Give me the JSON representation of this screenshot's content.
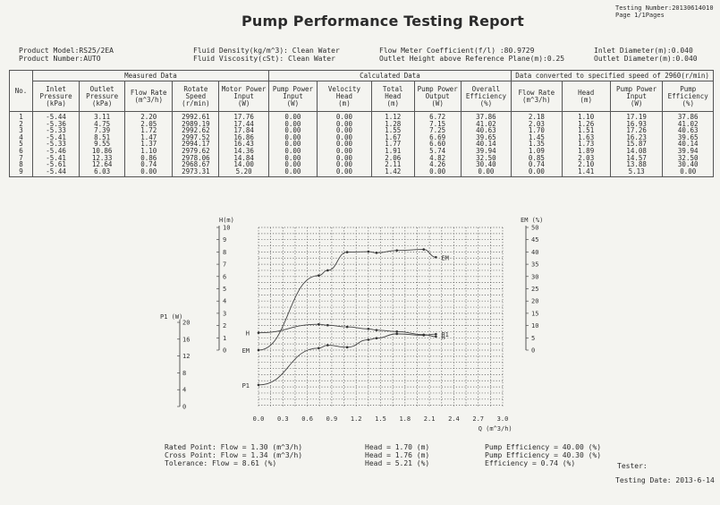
{
  "header": {
    "title": "Pump Performance Testing Report",
    "testing_number": "Testing Number:20130614010",
    "page": "Page 1/1Pages"
  },
  "meta": {
    "product_model": "Product Model:RS25/2EA",
    "product_number": "Product Number:AUTO",
    "fluid_density": "Fluid Density(kg/m^3): Clean Water",
    "fluid_viscosity": "Fluid Viscosity(cSt): Clean Water",
    "flow_meter": "Flow Meter Coefficient(f/l) :80.9729",
    "outlet_height": "Outlet Height above Reference Plane(m):0.25",
    "inlet_diameter": "Inlet Diameter(m):0.040",
    "outlet_diameter": "Outlet Diameter(m):0.040"
  },
  "table": {
    "group_measured": "Measured Data",
    "group_calculated": "Calculated Data",
    "group_converted": "Data converted to specified speed of 2960(r/min)",
    "no_label": "No.",
    "columns": [
      [
        "Inlet",
        "Pressure",
        "(kPa)"
      ],
      [
        "Outlet",
        "Pressure",
        "(kPa)"
      ],
      [
        "Flow Rate",
        "",
        "(m^3/h)"
      ],
      [
        "Rotate",
        "Speed",
        "(r/min)"
      ],
      [
        "Motor Power",
        "Input",
        "(W)"
      ],
      [
        "Pump Power",
        "Input",
        "(W)"
      ],
      [
        "Velocity",
        "Head",
        "(m)"
      ],
      [
        "Total",
        "Head",
        "(m)"
      ],
      [
        "Pump Power",
        "Output",
        "(W)"
      ],
      [
        "Overall",
        "Efficiency",
        "(%)"
      ],
      [
        "Flow Rate",
        "",
        "(m^3/h)"
      ],
      [
        "Head",
        "",
        "(m)"
      ],
      [
        "Pump Power",
        "Input",
        "(W)"
      ],
      [
        "Pump",
        "Efficiency",
        "(%)"
      ]
    ],
    "rows": [
      [
        "1",
        "-5.44",
        "3.11",
        "2.20",
        "2992.61",
        "17.76",
        "0.00",
        "0.00",
        "1.12",
        "6.72",
        "37.86",
        "2.18",
        "1.10",
        "17.19",
        "37.86"
      ],
      [
        "2",
        "-5.36",
        "4.75",
        "2.05",
        "2989.19",
        "17.44",
        "0.00",
        "0.00",
        "1.28",
        "7.15",
        "41.02",
        "2.03",
        "1.26",
        "16.93",
        "41.02"
      ],
      [
        "3",
        "-5.33",
        "7.39",
        "1.72",
        "2992.62",
        "17.84",
        "0.00",
        "0.00",
        "1.55",
        "7.25",
        "40.63",
        "1.70",
        "1.51",
        "17.26",
        "40.63"
      ],
      [
        "4",
        "-5.41",
        "8.51",
        "1.47",
        "2997.52",
        "16.86",
        "0.00",
        "0.00",
        "1.67",
        "6.69",
        "39.65",
        "1.45",
        "1.63",
        "16.23",
        "39.65"
      ],
      [
        "5",
        "-5.33",
        "9.55",
        "1.37",
        "2994.17",
        "16.43",
        "0.00",
        "0.00",
        "1.77",
        "6.60",
        "40.14",
        "1.35",
        "1.73",
        "15.87",
        "40.14"
      ],
      [
        "6",
        "-5.46",
        "10.86",
        "1.10",
        "2979.62",
        "14.36",
        "0.00",
        "0.00",
        "1.91",
        "5.74",
        "39.94",
        "1.09",
        "1.89",
        "14.08",
        "39.94"
      ],
      [
        "7",
        "-5.41",
        "12.33",
        "0.86",
        "2978.06",
        "14.84",
        "0.00",
        "0.00",
        "2.06",
        "4.82",
        "32.50",
        "0.85",
        "2.03",
        "14.57",
        "32.50"
      ],
      [
        "8",
        "-5.61",
        "12.64",
        "0.74",
        "2968.67",
        "14.00",
        "0.00",
        "0.00",
        "2.11",
        "4.26",
        "30.40",
        "0.74",
        "2.10",
        "13.88",
        "30.40"
      ],
      [
        "9",
        "-5.44",
        "6.03",
        "0.00",
        "2973.31",
        "5.20",
        "0.00",
        "0.00",
        "1.42",
        "0.00",
        "0.00",
        "0.00",
        "1.41",
        "5.13",
        "0.00"
      ]
    ]
  },
  "chart_data": {
    "type": "line",
    "xlabel": "Q (m^3/h)",
    "x_ticks": [
      "0.0",
      "0.3",
      "0.6",
      "0.9",
      "1.2",
      "1.5",
      "1.8",
      "2.1",
      "2.4",
      "2.7",
      "3.0"
    ],
    "xlim": [
      0,
      3.0
    ],
    "h_axis": {
      "label": "H(m)",
      "ticks": [
        "0",
        "1",
        "2",
        "3",
        "4",
        "5",
        "6",
        "7",
        "8",
        "9",
        "10"
      ],
      "lim": [
        0,
        10
      ]
    },
    "em_axis": {
      "label": "EM (%)",
      "ticks": [
        "0",
        "5",
        "10",
        "15",
        "20",
        "25",
        "30",
        "35",
        "40",
        "45",
        "50"
      ],
      "lim": [
        0,
        50
      ]
    },
    "p1_axis": {
      "label": "P1 (W)",
      "ticks": [
        "0",
        "4",
        "8",
        "12",
        "16",
        "20"
      ],
      "lim": [
        0,
        20
      ]
    },
    "series": [
      {
        "name": "H",
        "axis": "h",
        "x": [
          0.0,
          0.74,
          0.85,
          1.09,
          1.35,
          1.45,
          1.7,
          2.03,
          2.18
        ],
        "y": [
          1.41,
          2.1,
          2.03,
          1.89,
          1.73,
          1.63,
          1.51,
          1.26,
          1.1
        ]
      },
      {
        "name": "EM",
        "axis": "em",
        "x": [
          0.0,
          0.74,
          0.85,
          1.09,
          1.35,
          1.45,
          1.7,
          2.03,
          2.18
        ],
        "y": [
          0.0,
          30.4,
          32.5,
          39.94,
          40.14,
          39.65,
          40.63,
          41.02,
          37.86
        ]
      },
      {
        "name": "P1",
        "axis": "p1",
        "x": [
          0.0,
          0.74,
          0.85,
          1.09,
          1.35,
          1.45,
          1.7,
          2.03,
          2.18
        ],
        "y": [
          5.13,
          13.88,
          14.57,
          14.08,
          15.87,
          16.23,
          17.26,
          16.93,
          17.19
        ]
      }
    ],
    "grid": true
  },
  "footer": {
    "rated_point": "Rated Point:    Flow = 1.30 (m^3/h)",
    "cross_point": "Cross Point: Flow = 1.34 (m^3/h)",
    "tolerance": "Tolerance:      Flow = 8.61 (%)",
    "head_rated": "Head = 1.70 (m)",
    "head_cross": "Head = 1.76 (m)",
    "head_tol": "Head = 5.21 (%)",
    "eff_rated": "Pump Efficiency = 40.00 (%)",
    "eff_cross": "Pump Efficiency = 40.30 (%)",
    "eff_tol": "Efficiency = 0.74 (%)",
    "tester": "Tester:",
    "testing_date": "Testing Date: 2013-6-14"
  }
}
